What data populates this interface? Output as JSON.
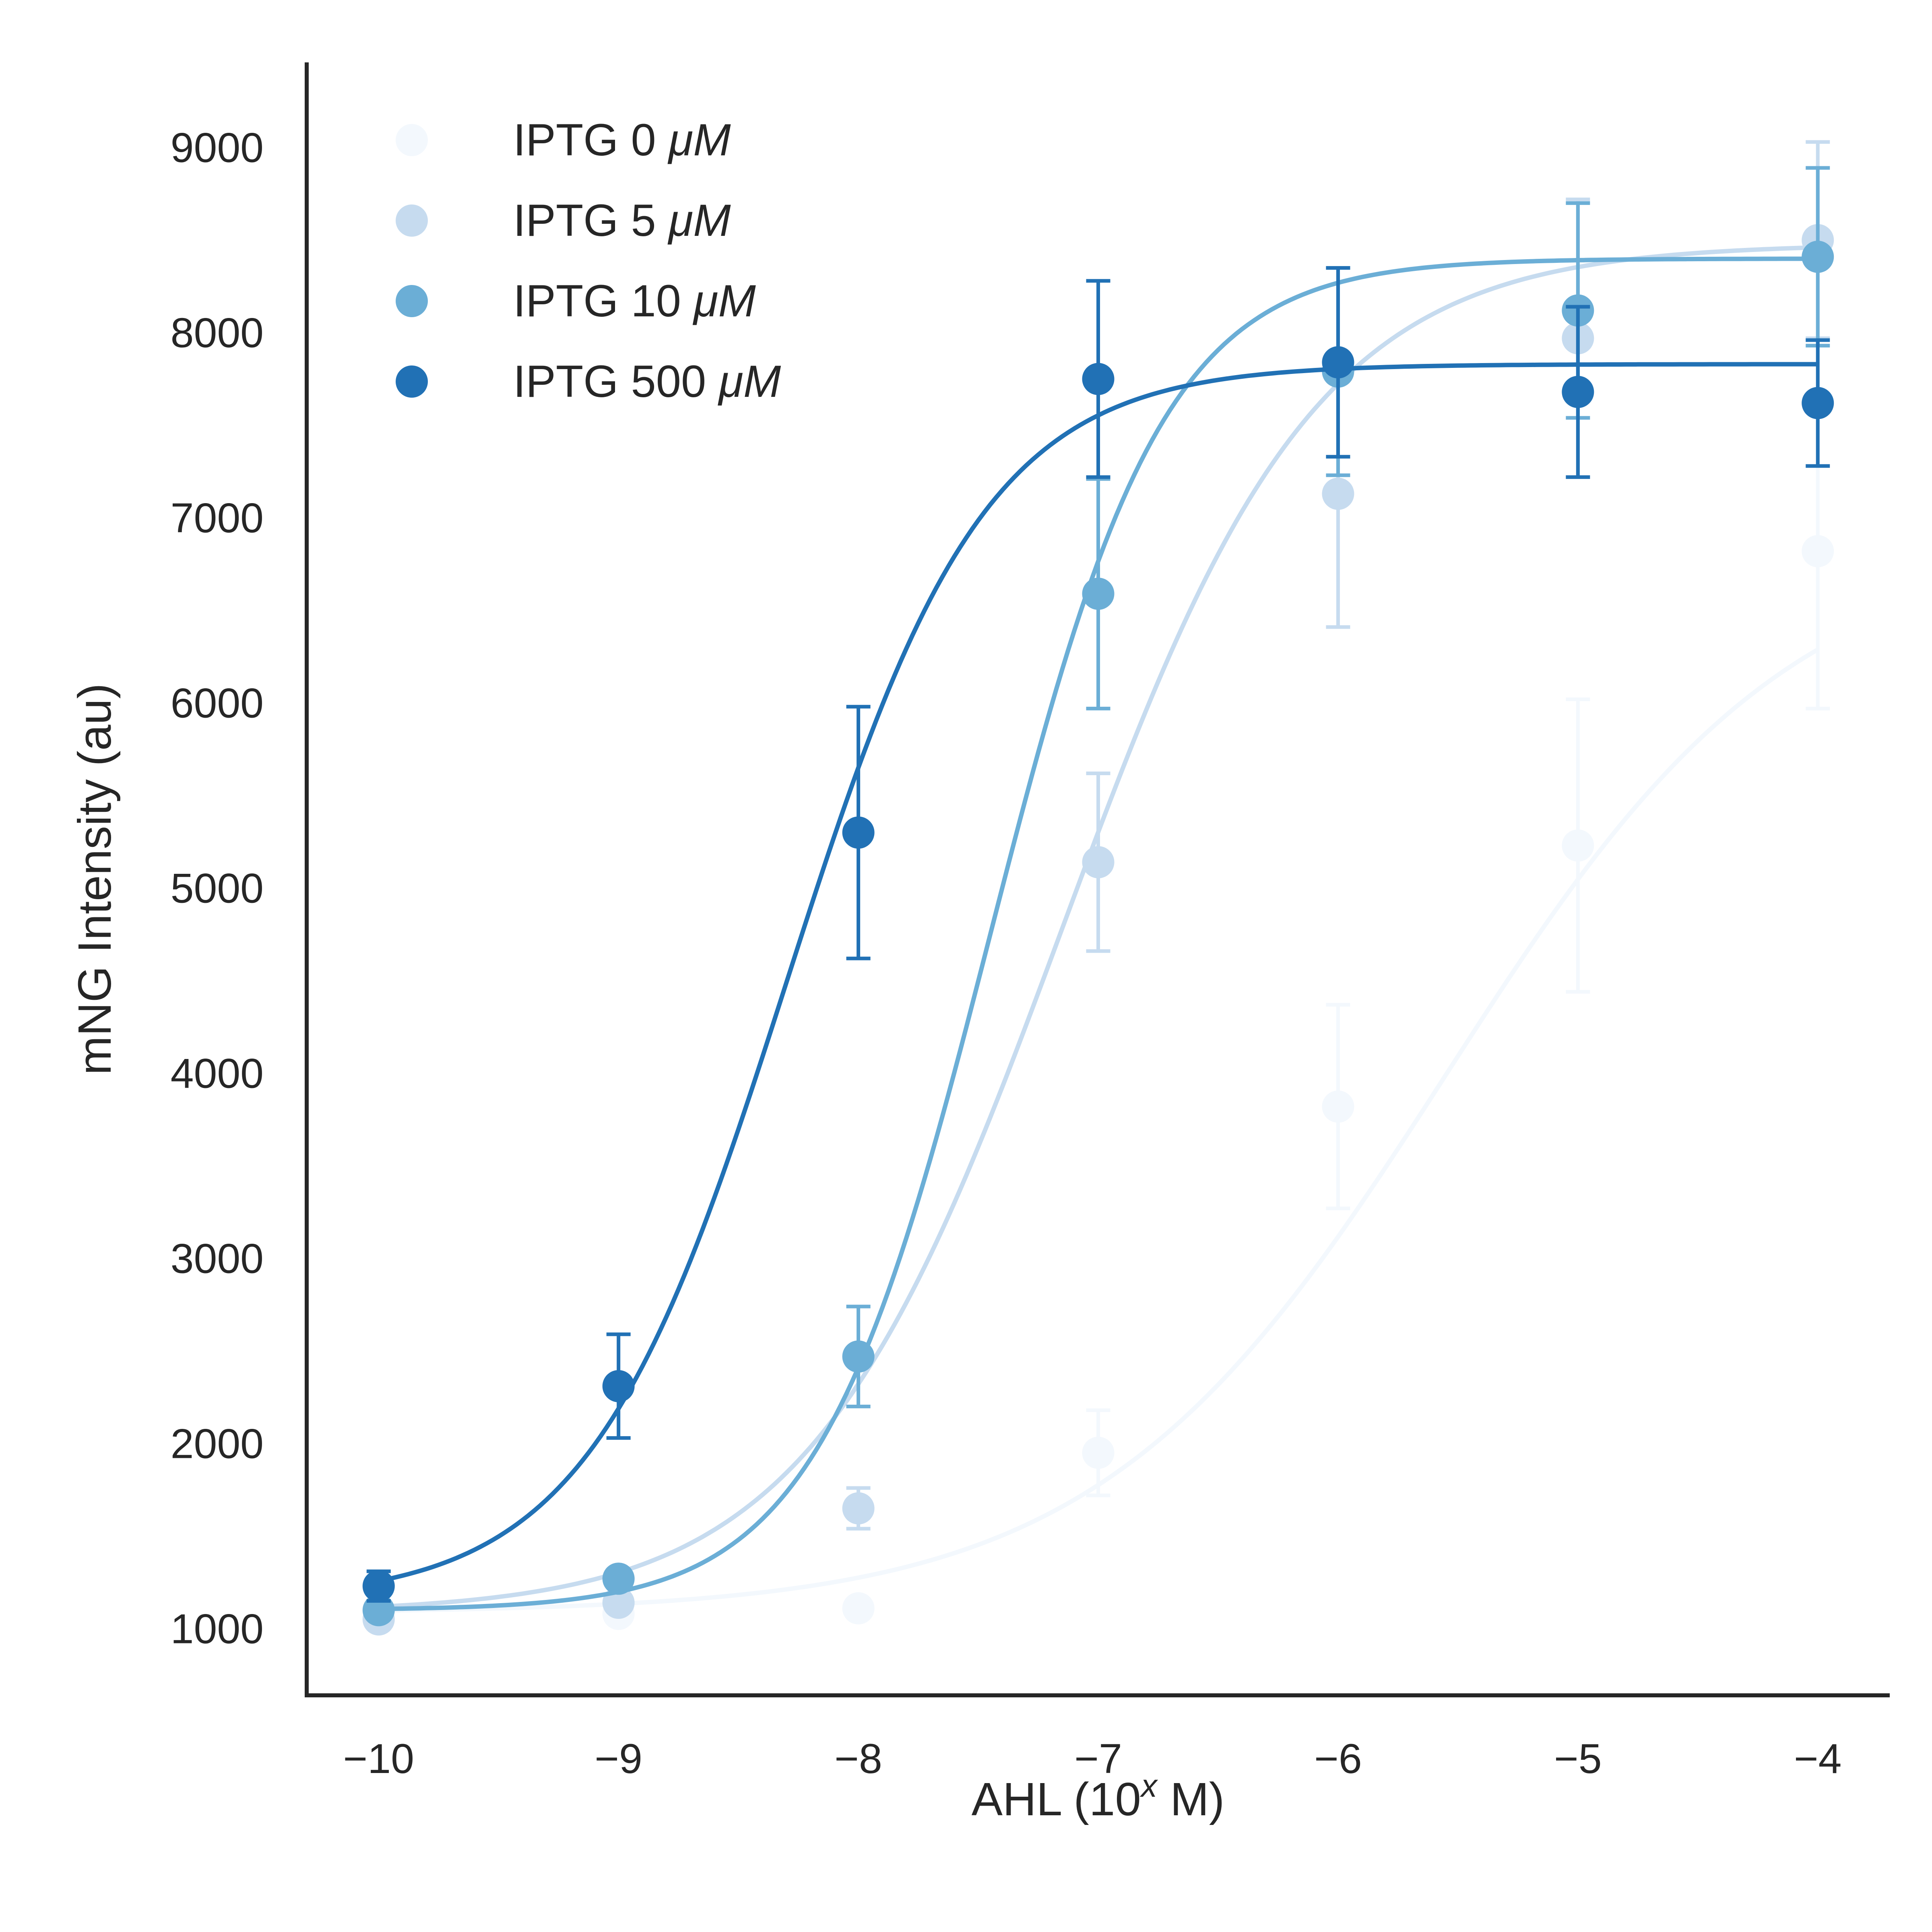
{
  "chart_data": {
    "type": "scatter",
    "xlabel": "AHL (10",
    "xlabel_sup": "x",
    "xlabel_suffix": " M)",
    "ylabel": "mNG Intensity (au)",
    "xlim": [
      -10.3,
      -3.7
    ],
    "ylim": [
      640,
      9460
    ],
    "xticks": [
      -10,
      -9,
      -8,
      -7,
      -6,
      -5,
      -4
    ],
    "xtick_labels": [
      "−10",
      "−9",
      "−8",
      "−7",
      "−6",
      "−5",
      "−4"
    ],
    "yticks": [
      1000,
      2000,
      3000,
      4000,
      5000,
      6000,
      7000,
      8000,
      9000
    ],
    "ytick_labels": [
      "1000",
      "2000",
      "3000",
      "4000",
      "5000",
      "6000",
      "7000",
      "8000",
      "9000"
    ],
    "grid": false,
    "legend_position": "top-left",
    "x": [
      -10,
      -9,
      -8,
      -7,
      -6,
      -5,
      -4
    ],
    "series": [
      {
        "name": "IPTG 0 ",
        "unit": "μM",
        "color": "#f3f8fd",
        "y": [
          1060,
          1080,
          1110,
          1950,
          3820,
          5230,
          6820
        ],
        "err": [
          30,
          40,
          40,
          230,
          550,
          790,
          850
        ],
        "fit": {
          "bottom": 1085,
          "top": 6900,
          "log_ec50": -5.55,
          "hill": 0.6
        }
      },
      {
        "name": "IPTG 5 ",
        "unit": "μM",
        "color": "#c6dbef",
        "y": [
          1050,
          1140,
          1650,
          5140,
          7130,
          7970,
          8500
        ],
        "err": [
          30,
          40,
          110,
          480,
          720,
          750,
          530
        ],
        "fit": {
          "bottom": 1085,
          "top": 8480,
          "log_ec50": -7.15,
          "hill": 0.82
        }
      },
      {
        "name": "IPTG 10 ",
        "unit": "μM",
        "color": "#6baed6",
        "y": [
          1100,
          1270,
          2470,
          6590,
          7790,
          8120,
          8410
        ],
        "err": [
          30,
          40,
          270,
          620,
          560,
          580,
          480
        ],
        "fit": {
          "bottom": 1100,
          "top": 8400,
          "log_ec50": -7.45,
          "hill": 1.2
        }
      },
      {
        "name": "IPTG 500 ",
        "unit": "μM",
        "color": "#2171b5",
        "y": [
          1230,
          2310,
          5300,
          7750,
          7840,
          7680,
          7620
        ],
        "err": [
          80,
          280,
          680,
          530,
          510,
          460,
          340
        ],
        "fit": {
          "bottom": 1150,
          "top": 7830,
          "log_ec50": -8.3,
          "hill": 1.05
        }
      }
    ]
  }
}
